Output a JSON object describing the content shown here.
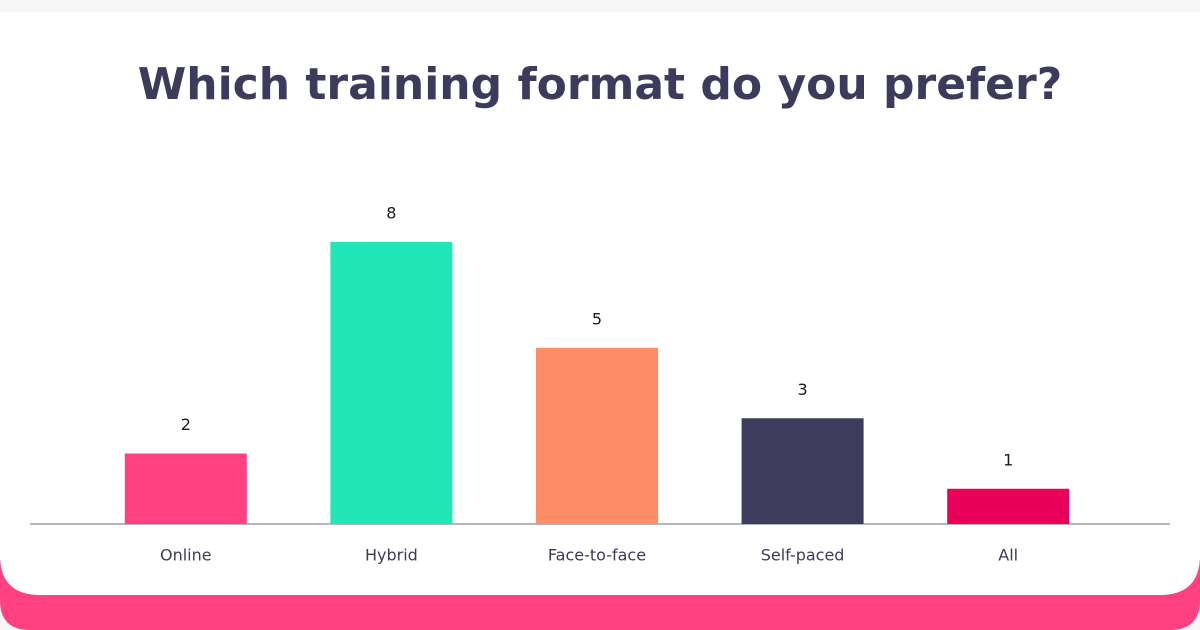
{
  "chart_data": {
    "type": "bar",
    "title": "Which training format do you prefer?",
    "categories": [
      "Online",
      "Hybrid",
      "Face-to-face",
      "Self-paced",
      "All"
    ],
    "values": [
      2,
      8,
      5,
      3,
      1
    ],
    "colors": [
      "#ff4081",
      "#21e6b6",
      "#ff8e66",
      "#3e3c5c",
      "#e8005a"
    ]
  }
}
